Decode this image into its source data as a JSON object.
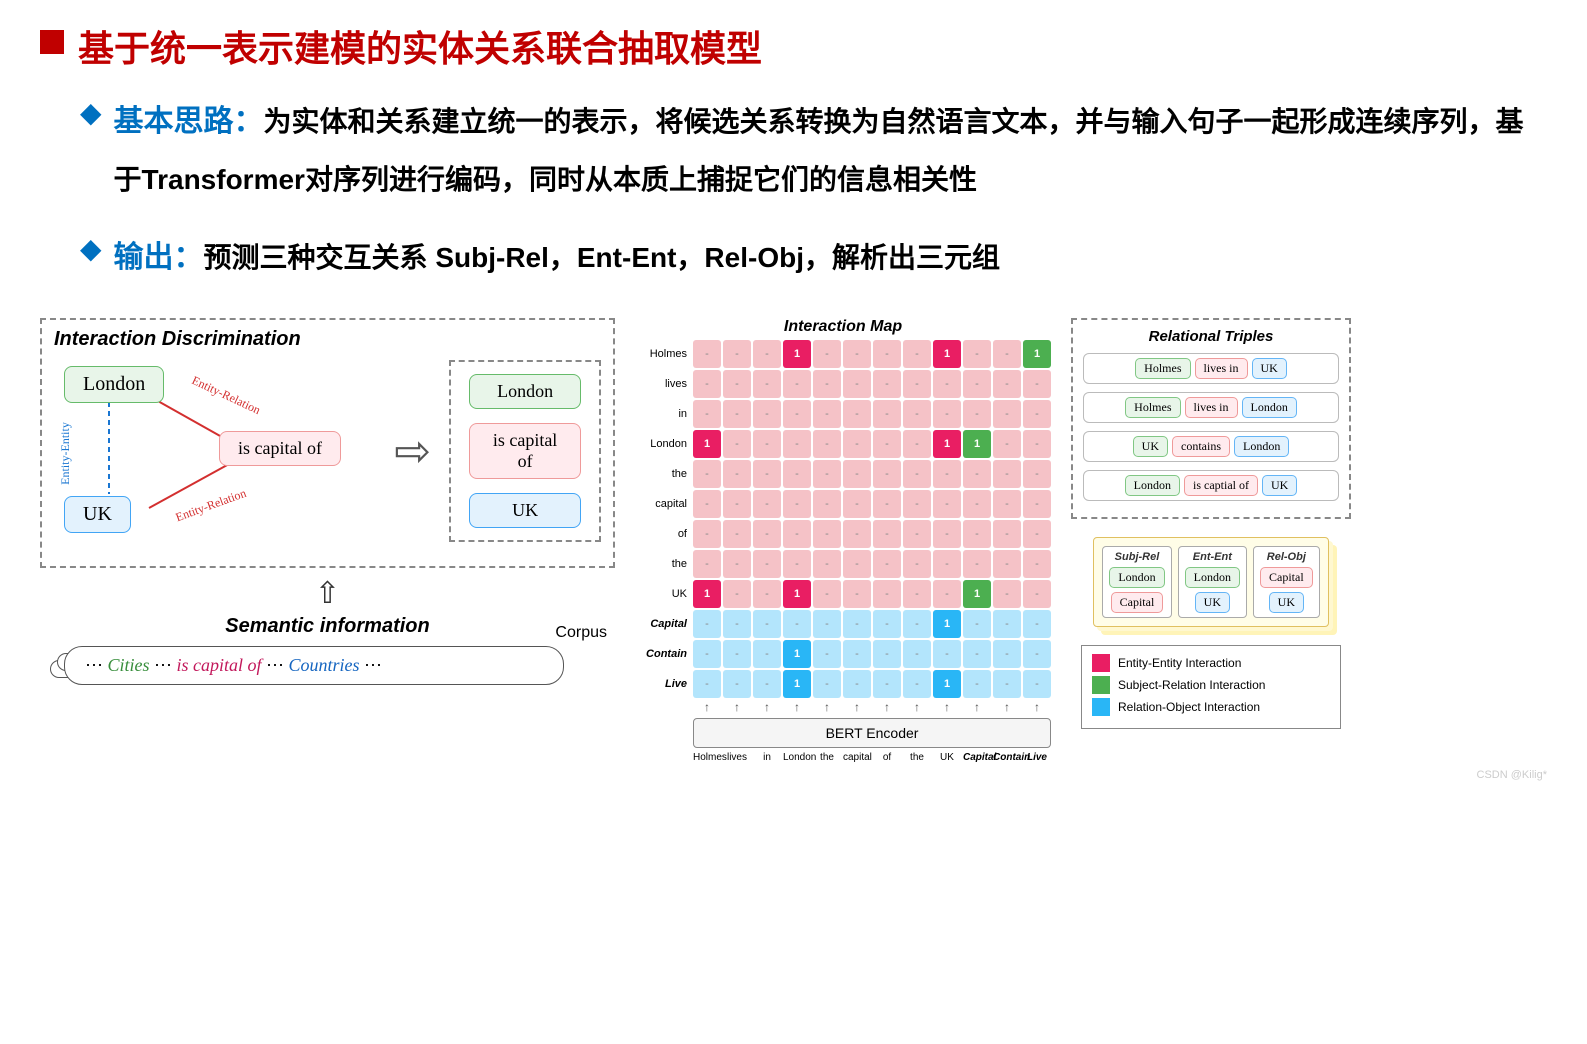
{
  "title": "基于统一表示建模的实体关系联合抽取模型",
  "colors": {
    "title": "#c00000",
    "bullet": "#0070c0",
    "body": "#000000",
    "entity_green_bg": "#e8f5e9",
    "entity_green_border": "#66bb6a",
    "entity_blue_bg": "#e3f2fd",
    "entity_blue_border": "#42a5f5",
    "relation_pink_bg": "#ffebee",
    "relation_pink_border": "#ef9a9a",
    "ee_color": "#e91e63",
    "sr_color": "#4caf50",
    "ro_color": "#29b6f6",
    "map_pink_bg": "#f5c2c7",
    "map_blue_bg": "#b3e5fc",
    "legend_border": "#888888",
    "bert_bg": "#f5f5f5",
    "cities_color": "#388e3c",
    "countries_color": "#1565c0",
    "rel_text": "#c2185b"
  },
  "bullets": {
    "b1_label": "基本思路：",
    "b1_text": "为实体和关系建立统一的表示，将候选关系转换为自然语言文本，并与输入句子一起形成连续序列，基于Transformer对序列进行编码，同时从本质上捕捉它们的信息相关性",
    "b2_label": "输出：",
    "b2_text": "预测三种交互关系 Subj-Rel，Ent-Ent，Rel-Obj，解析出三元组"
  },
  "disc": {
    "title": "Interaction Discrimination",
    "london": "London",
    "uk": "UK",
    "rel": "is capital of",
    "ee": "Entity-Entity",
    "er": "Entity-Relation",
    "out": [
      "London",
      "is capital of",
      "UK"
    ]
  },
  "semantic": {
    "title": "Semantic information",
    "corpus_label": "Corpus",
    "prefix": "⋯ ",
    "cities": "Cities",
    "mid": " ⋯ ",
    "rel": "is capital of",
    "mid2": " ⋯ ",
    "countries": "Countries",
    "suffix": " ⋯"
  },
  "imap": {
    "title": "Interaction Map",
    "rows": [
      "Holmes",
      "lives",
      "in",
      "London",
      "the",
      "capital",
      "of",
      "the",
      "UK",
      "Capital",
      "Contain",
      "Live"
    ],
    "tokens": [
      "Holmes",
      "lives",
      "in",
      "London",
      "the",
      "capital",
      "of",
      "the",
      "UK",
      "Capital",
      "Contain",
      "Live"
    ],
    "bold_rows": [
      9,
      10,
      11
    ],
    "cells": [
      [
        "-",
        "-",
        "-",
        "ee",
        "-",
        "-",
        "-",
        "-",
        "ee",
        "-",
        "-",
        "sr"
      ],
      [
        "-",
        "-",
        "-",
        "-",
        "-",
        "-",
        "-",
        "-",
        "-",
        "-",
        "-",
        "-"
      ],
      [
        "-",
        "-",
        "-",
        "-",
        "-",
        "-",
        "-",
        "-",
        "-",
        "-",
        "-",
        "-"
      ],
      [
        "ee",
        "-",
        "-",
        "-",
        "-",
        "-",
        "-",
        "-",
        "ee",
        "sr",
        "-",
        "-"
      ],
      [
        "-",
        "-",
        "-",
        "-",
        "-",
        "-",
        "-",
        "-",
        "-",
        "-",
        "-",
        "-"
      ],
      [
        "-",
        "-",
        "-",
        "-",
        "-",
        "-",
        "-",
        "-",
        "-",
        "-",
        "-",
        "-"
      ],
      [
        "-",
        "-",
        "-",
        "-",
        "-",
        "-",
        "-",
        "-",
        "-",
        "-",
        "-",
        "-"
      ],
      [
        "-",
        "-",
        "-",
        "-",
        "-",
        "-",
        "-",
        "-",
        "-",
        "-",
        "-",
        "-"
      ],
      [
        "ee",
        "-",
        "-",
        "ee",
        "-",
        "-",
        "-",
        "-",
        "-",
        "sr",
        "-",
        "-"
      ],
      [
        "-",
        "-",
        "-",
        "-",
        "-",
        "-",
        "-",
        "-",
        "ro",
        "-",
        "-",
        "-"
      ],
      [
        "-",
        "-",
        "-",
        "ro",
        "-",
        "-",
        "-",
        "-",
        "-",
        "-",
        "-",
        "-"
      ],
      [
        "-",
        "-",
        "-",
        "ro",
        "-",
        "-",
        "-",
        "-",
        "ro",
        "-",
        "-",
        "-"
      ]
    ],
    "bert": "BERT Encoder"
  },
  "triples": {
    "title": "Relational Triples",
    "rows": [
      {
        "s": "Holmes",
        "r": "lives in",
        "o": "UK"
      },
      {
        "s": "Holmes",
        "r": "lives in",
        "o": "London"
      },
      {
        "s": "UK",
        "r": "contains",
        "o": "London"
      },
      {
        "s": "London",
        "r": "is captial of",
        "o": "UK"
      }
    ]
  },
  "interact_cols": {
    "sr": {
      "title": "Subj-Rel",
      "items": [
        "London",
        "Capital"
      ]
    },
    "ee": {
      "title": "Ent-Ent",
      "items": [
        "London",
        "UK"
      ]
    },
    "ro": {
      "title": "Rel-Obj",
      "items": [
        "Capital",
        "UK"
      ]
    }
  },
  "legend": [
    {
      "color": "#e91e63",
      "label": "Entity-Entity Interaction"
    },
    {
      "color": "#4caf50",
      "label": "Subject-Relation Interaction"
    },
    {
      "color": "#29b6f6",
      "label": "Relation-Object Interaction"
    }
  ],
  "watermark": "CSDN @Kilig*"
}
